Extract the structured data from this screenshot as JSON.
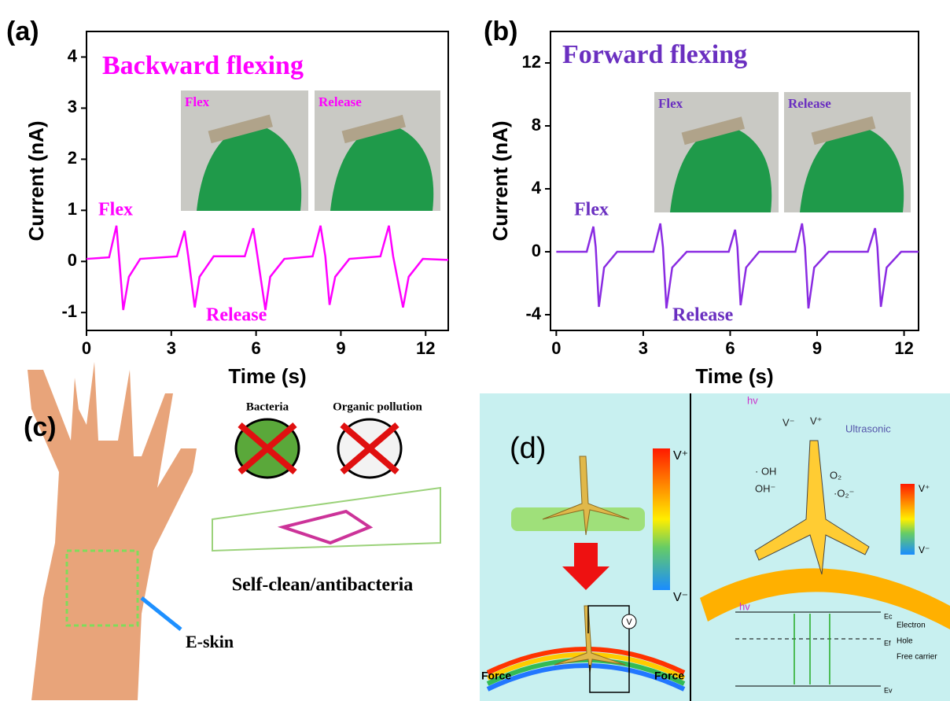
{
  "chart_data": [
    {
      "type": "line",
      "panel_label": "(a)",
      "title": "Backward flexing",
      "x_label": "Time (s)",
      "y_label": "Current (nA)",
      "x": [
        0,
        0.8,
        1.06,
        1.15,
        1.3,
        1.5,
        1.9,
        3.2,
        3.47,
        3.6,
        3.83,
        4.0,
        4.5,
        5.6,
        5.9,
        6.05,
        6.33,
        6.5,
        7.0,
        8.0,
        8.28,
        8.45,
        8.6,
        8.8,
        9.3,
        10.4,
        10.7,
        10.85,
        11.2,
        11.4,
        11.9,
        12.8
      ],
      "series": [
        {
          "color": "#ff00ff",
          "values": [
            0.05,
            0.08,
            0.7,
            0.1,
            -0.95,
            -0.3,
            0.05,
            0.1,
            0.6,
            0.1,
            -0.9,
            -0.3,
            0.1,
            0.1,
            0.65,
            0.1,
            -0.95,
            -0.3,
            0.05,
            0.1,
            0.7,
            0.1,
            -0.85,
            -0.3,
            0.05,
            0.1,
            0.7,
            0.1,
            -0.9,
            -0.3,
            0.05,
            0.03
          ]
        }
      ],
      "annotations": [
        "Flex",
        "Release"
      ],
      "insets": [
        "Flex",
        "Release"
      ],
      "text_color": "#ff00ff",
      "xlim": [
        0,
        12.8
      ],
      "xticks": [
        0,
        3,
        6,
        9,
        12
      ],
      "ylim": [
        -1.35,
        4.5
      ],
      "yticks": [
        -1,
        0,
        1,
        2,
        3,
        4
      ]
    },
    {
      "type": "line",
      "panel_label": "(b)",
      "title": "Forward flexing",
      "x_label": "Time (s)",
      "y_label": "Current (nA)",
      "x": [
        0,
        1.05,
        1.28,
        1.36,
        1.47,
        1.65,
        2.1,
        3.35,
        3.59,
        3.68,
        3.8,
        4.0,
        4.5,
        5.95,
        6.17,
        6.25,
        6.36,
        6.55,
        7.0,
        8.25,
        8.48,
        8.58,
        8.7,
        8.9,
        9.4,
        10.75,
        11.0,
        11.08,
        11.2,
        11.4,
        11.9,
        12.5
      ],
      "series": [
        {
          "color": "#8a2be2",
          "values": [
            0,
            0,
            1.6,
            0.3,
            -3.5,
            -1,
            0,
            0,
            1.8,
            0.3,
            -3.6,
            -1,
            0,
            0,
            1.4,
            0.3,
            -3.4,
            -1,
            0,
            0,
            1.8,
            0.3,
            -3.6,
            -1,
            0,
            0,
            1.5,
            0.3,
            -3.5,
            -1,
            0,
            0
          ]
        }
      ],
      "annotations": [
        "Flex",
        "Release"
      ],
      "insets": [
        "Flex",
        "Release"
      ],
      "text_color": "#6a2fc0",
      "xlim": [
        -0.2,
        12.5
      ],
      "xticks": [
        0,
        3,
        6,
        9,
        12
      ],
      "ylim": [
        -5,
        14
      ],
      "yticks": [
        -4,
        0,
        4,
        8,
        12
      ]
    }
  ],
  "panel_c": {
    "label": "(c)",
    "bacteria": "Bacteria",
    "pollution": "Organic pollution",
    "caption": "Self-clean/antibacteria",
    "eskin": "E-skin"
  },
  "panel_d": {
    "label": "(d)",
    "colorbar": [
      "V⁺",
      "V⁻"
    ],
    "force": [
      "Force",
      "Force"
    ],
    "meter": "V",
    "right": {
      "hv": "hv",
      "v_minus": "V⁻",
      "v_plus": "V⁺",
      "ultrasonic": "Ultrasonic",
      "oh_rad": "· OH",
      "oh_ion": "OH⁻",
      "o2": "O₂",
      "o2_rad": "·O₂⁻",
      "colorbar": [
        "V⁺",
        "V⁻"
      ],
      "hv2": "hv",
      "bands": [
        "Ec",
        "Ef",
        "Ev"
      ],
      "legend": [
        "Electron",
        "Hole",
        "Free carrier"
      ]
    }
  }
}
